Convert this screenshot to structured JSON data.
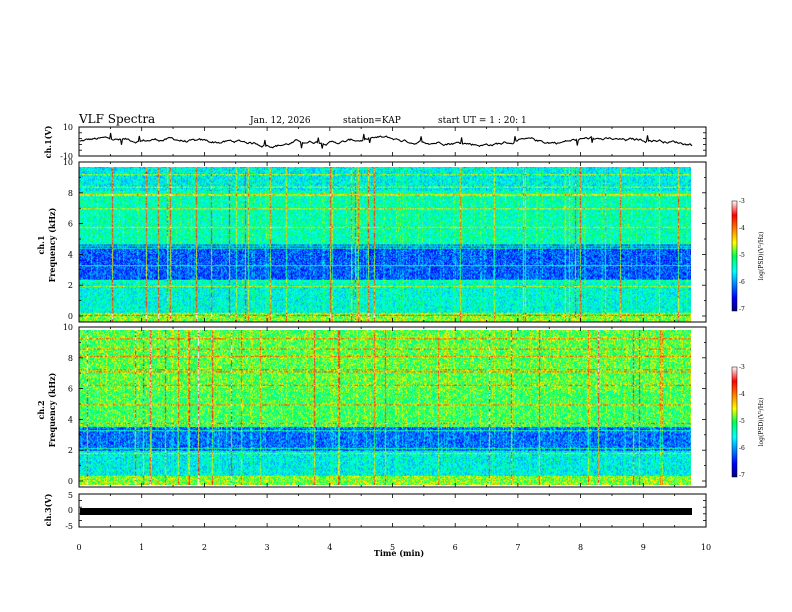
{
  "header": {
    "title": "VLF Spectra",
    "date": "Jan. 12, 2026",
    "station": "station=KAP",
    "start": "start UT = 1 : 20: 1"
  },
  "chart_data": [
    {
      "name": "ch1-voltage",
      "type": "line",
      "ylabel": "ch.1(V)",
      "ylim": [
        -10,
        10
      ],
      "yticks": [
        "10",
        "-10"
      ],
      "xlim": [
        0,
        10
      ]
    },
    {
      "name": "ch1-spectrogram",
      "type": "heatmap",
      "ylabel_top": "ch.1",
      "ylabel": "Frequency (kHz)",
      "ylim": [
        0,
        10
      ],
      "yticks": [
        "0",
        "2",
        "4",
        "6",
        "8",
        "10"
      ],
      "xlim": [
        0,
        10
      ],
      "colorbar": {
        "label": "log(PSD)(V²/Hz)",
        "range": [
          -7,
          -3
        ],
        "ticks": [
          "-3",
          "-4",
          "-5",
          "-6",
          "-7"
        ]
      }
    },
    {
      "name": "ch2-spectrogram",
      "type": "heatmap",
      "ylabel_top": "ch.2",
      "ylabel": "Frequency (kHz)",
      "ylim": [
        0,
        10
      ],
      "yticks": [
        "0",
        "2",
        "4",
        "6",
        "8",
        "10"
      ],
      "xlim": [
        0,
        10
      ],
      "colorbar": {
        "label": "log(PSD)(V²/Hz)",
        "range": [
          -7,
          -3
        ],
        "ticks": [
          "-3",
          "-4",
          "-5",
          "-6",
          "-7"
        ]
      }
    },
    {
      "name": "ch3-voltage",
      "type": "line",
      "ylabel": "ch.3(V)",
      "ylim": [
        -5,
        5
      ],
      "yticks": [
        "5",
        "0",
        "-5"
      ],
      "constant_value": -1.8,
      "xlim": [
        0,
        10
      ],
      "xlabel": "Time (min)",
      "xticks": [
        "0",
        "1",
        "2",
        "3",
        "4",
        "5",
        "6",
        "7",
        "8",
        "9",
        "10"
      ]
    }
  ]
}
